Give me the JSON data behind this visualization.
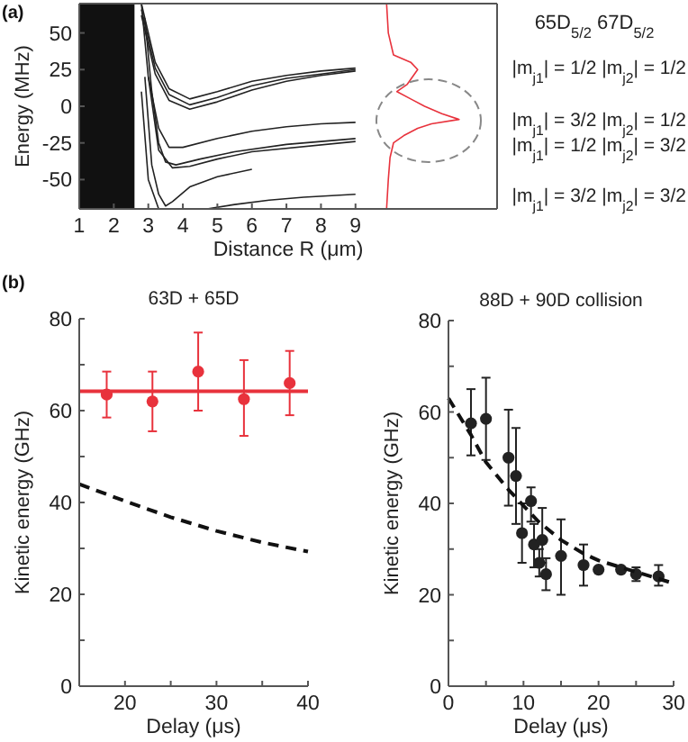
{
  "chart_data": [
    {
      "type": "line",
      "xlabel": "Distance R (μm)",
      "ylabel": "Energy (MHz)",
      "xlim": [
        1,
        13.1
      ],
      "ylim": [
        -70,
        70
      ],
      "xticks": [
        1,
        2,
        3,
        4,
        5,
        6,
        7,
        8,
        9
      ],
      "yticks": [
        -50,
        -25,
        0,
        25,
        50
      ],
      "bands": [
        {
          "axis": "x",
          "from": 1,
          "to": 2.6,
          "color": "#111111"
        }
      ],
      "annotations": [
        "(a)",
        "65D$_{5/2}$ 67D$_{5/2}$",
        "|m$_{j1}$| = 1/2 |m$_{j2}$| = 1/2",
        "|m$_{j1}$| = 3/2 |m$_{j2}$| = 1/2",
        "|m$_{j1}$| = 1/2 |m$_{j2}$| = 3/2",
        "|m$_{j1}$| = 3/2 |m$_{j2}$| = 3/2"
      ],
      "series": [
        {
          "color": "#222222",
          "x": [
            2.8,
            3.2,
            3.6,
            4.2,
            5,
            6,
            7,
            8,
            9
          ],
          "values": [
            70,
            30,
            12,
            5,
            10,
            17,
            21,
            24,
            26
          ]
        },
        {
          "color": "#222222",
          "x": [
            2.8,
            3.2,
            3.6,
            4.2,
            5,
            6,
            7,
            8,
            9
          ],
          "values": [
            66,
            26,
            8,
            1,
            6,
            14,
            19,
            22,
            25
          ]
        },
        {
          "color": "#222222",
          "x": [
            2.8,
            3.2,
            3.6,
            4.2,
            5,
            6,
            7,
            8,
            9
          ],
          "values": [
            62,
            22,
            4,
            -2,
            3,
            11,
            17,
            21,
            24
          ]
        },
        {
          "color": "#222222",
          "x": [
            2.8,
            3,
            3.3,
            3.6,
            4,
            5,
            6,
            7,
            8,
            9
          ],
          "values": [
            70,
            20,
            -15,
            -28,
            -28,
            -22,
            -17,
            -14,
            -12,
            -11
          ]
        },
        {
          "color": "#222222",
          "x": [
            2.9,
            3.1,
            3.3,
            3.5,
            3.8,
            4.5,
            5.5,
            7,
            9
          ],
          "values": [
            60,
            10,
            -25,
            -38,
            -40,
            -36,
            -31,
            -26,
            -22
          ]
        },
        {
          "color": "#222222",
          "x": [
            3,
            3.3,
            3.7,
            4.2,
            5,
            6,
            9
          ],
          "values": [
            20,
            -30,
            -42,
            -41,
            -36,
            -31,
            -24
          ]
        },
        {
          "color": "#222222",
          "x": [
            2.9,
            3.1,
            3.3,
            3.5,
            3.7,
            4.2,
            5,
            6
          ],
          "values": [
            20,
            -40,
            -60,
            -68,
            -65,
            -55,
            -48,
            -43
          ]
        },
        {
          "color": "#222222",
          "x": [
            2.8,
            3,
            3.3
          ],
          "values": [
            10,
            -50,
            -70
          ]
        },
        {
          "color": "#222222",
          "x": [
            4.7,
            5.5,
            6.5,
            7.5,
            9
          ],
          "values": [
            -70,
            -67,
            -64,
            -62,
            -60
          ]
        },
        {
          "color": "#e8323c",
          "x": [
            9.9,
            9.95,
            10.1,
            10.6,
            10.8,
            10.5,
            10.2,
            10.6,
            11,
            11.5,
            12,
            11.2,
            10.8,
            10.4,
            10.1,
            10,
            9.95,
            9.9
          ],
          "values": [
            70,
            50,
            35,
            30,
            25,
            15,
            10,
            5,
            0,
            -5,
            -9,
            -12,
            -15,
            -20,
            -25,
            -35,
            -50,
            -70
          ]
        }
      ]
    },
    {
      "type": "scatter",
      "title": "63D + 65D",
      "xlabel": "Delay (μs)",
      "ylabel": "Kinetic energy (GHz)",
      "xlim": [
        15,
        40
      ],
      "ylim": [
        0,
        80
      ],
      "xticks": [
        20,
        {
          "value": 25,
          "label": null
        },
        30,
        {
          "value": 35,
          "label": null
        },
        40
      ],
      "yticks": [
        0,
        {
          "value": 10,
          "label": null
        },
        20,
        {
          "value": 30,
          "label": null
        },
        40,
        {
          "value": 50,
          "label": null
        },
        60,
        {
          "value": 70,
          "label": null
        },
        80
      ],
      "annotations": [
        "(b)"
      ],
      "ref_lines": [
        {
          "axis": "y",
          "value": 64.2,
          "color": "#e8323c"
        }
      ],
      "series": [
        {
          "marker": "circle",
          "color": "#e8323c",
          "x": [
            18,
            23,
            28,
            33,
            38
          ],
          "values": [
            63.5,
            62,
            68.5,
            62.5,
            66
          ],
          "errors": [
            [
              58.5,
              68.5
            ],
            [
              55.5,
              68.5
            ],
            [
              60,
              77
            ],
            [
              54.5,
              71
            ],
            [
              59,
              73
            ]
          ]
        },
        {
          "type": "line",
          "line_style": "dashed",
          "color": "#111111",
          "x": [
            15,
            20,
            25,
            30,
            35,
            40
          ],
          "values": [
            44,
            40.3,
            36.8,
            33.8,
            31.3,
            29.3
          ]
        }
      ]
    },
    {
      "type": "scatter",
      "title": "88D + 90D collision",
      "xlabel": "Delay (μs)",
      "ylabel": "Kinetic energy (GHz)",
      "xlim": [
        0,
        30
      ],
      "ylim": [
        0,
        80
      ],
      "xticks": [
        0,
        {
          "value": 5,
          "label": null
        },
        10,
        {
          "value": 15,
          "label": null
        },
        20,
        {
          "value": 25,
          "label": null
        },
        30
      ],
      "yticks": [
        0,
        {
          "value": 10,
          "label": null
        },
        20,
        {
          "value": 30,
          "label": null
        },
        40,
        {
          "value": 50,
          "label": null
        },
        60,
        {
          "value": 70,
          "label": null
        },
        80
      ],
      "series": [
        {
          "marker": "circle",
          "color": "#222222",
          "x": [
            3,
            5,
            8,
            9,
            9.8,
            11,
            11.4,
            12.1,
            12.5,
            13,
            15,
            18,
            20,
            23,
            25,
            28
          ],
          "values": [
            57.5,
            58.5,
            50,
            46,
            33.5,
            40.5,
            31,
            27,
            32,
            24.5,
            28.5,
            26.5,
            25.5,
            25.5,
            24.5,
            24
          ],
          "errors": [
            [
              50.5,
              65
            ],
            [
              49.5,
              67.5
            ],
            [
              39.5,
              60.5
            ],
            [
              35.5,
              56.5
            ],
            [
              27,
              40
            ],
            [
              36,
              43.5
            ],
            [
              26,
              35.5
            ],
            [
              24,
              30
            ],
            [
              27,
              39
            ],
            [
              21,
              28
            ],
            [
              20,
              36.5
            ],
            [
              22,
              31
            ],
            null,
            null,
            [
              23,
              26
            ],
            [
              22,
              26.5
            ]
          ]
        },
        {
          "type": "line",
          "line_style": "dashed",
          "color": "#111111",
          "x": [
            0,
            3,
            5,
            8,
            10,
            12,
            15,
            18,
            20,
            25,
            30
          ],
          "values": [
            63,
            55,
            49,
            43,
            39.5,
            36,
            32,
            29,
            27.5,
            25,
            22.5
          ]
        }
      ]
    }
  ]
}
